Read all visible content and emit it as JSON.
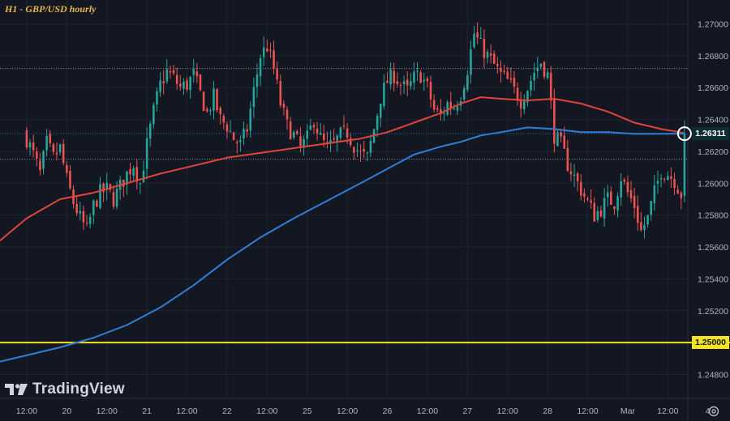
{
  "title": "H1 - GBP/USD hourly",
  "brand": "TradingView",
  "colors": {
    "background": "#131722",
    "bull": "#26a69a",
    "bear": "#ef5350",
    "ma_red": "#e0443a",
    "ma_blue": "#2f7fd8",
    "level": "#f2e422",
    "current_label_bg": "#0f2e34",
    "grid": "#1f2433",
    "axis_text": "#b2b5be"
  },
  "icons": {
    "brand": "tradingview-logo-icon",
    "settings": "gear-icon"
  },
  "chart_data": {
    "type": "candlestick",
    "title": "H1 - GBP/USD hourly",
    "ylim": [
      1.2465,
      1.2715
    ],
    "xlim": [
      -8,
      198
    ],
    "y_ticks": [
      "1.27000",
      "1.26800",
      "1.26600",
      "1.26400",
      "1.26200",
      "1.26000",
      "1.25800",
      "1.25600",
      "1.25400",
      "1.25200",
      "1.25000",
      "1.24800"
    ],
    "x_ticks": [
      {
        "x": 0,
        "label": "12:00"
      },
      {
        "x": 12,
        "label": "20"
      },
      {
        "x": 24,
        "label": "12:00"
      },
      {
        "x": 36,
        "label": "21"
      },
      {
        "x": 48,
        "label": "12:00"
      },
      {
        "x": 60,
        "label": "22"
      },
      {
        "x": 72,
        "label": "12:00"
      },
      {
        "x": 84,
        "label": "25"
      },
      {
        "x": 96,
        "label": "12:00"
      },
      {
        "x": 108,
        "label": "26"
      },
      {
        "x": 120,
        "label": "12:00"
      },
      {
        "x": 132,
        "label": "27"
      },
      {
        "x": 144,
        "label": "12:00"
      },
      {
        "x": 156,
        "label": "28"
      },
      {
        "x": 168,
        "label": "12:00"
      },
      {
        "x": 180,
        "label": "Mar"
      },
      {
        "x": 192,
        "label": "12:00"
      },
      {
        "x": 204,
        "label": "4"
      }
    ],
    "horizontal_levels": [
      {
        "price": 1.2672,
        "style": "dotted"
      },
      {
        "price": 1.2615,
        "style": "dotted"
      },
      {
        "price": 1.25,
        "style": "solid",
        "color": "#f2e422",
        "label": "1.25000"
      }
    ],
    "current_price": {
      "price": 1.26311,
      "label": "1.26311"
    },
    "anchors": [
      [
        0,
        1.2628
      ],
      [
        2,
        1.2618
      ],
      [
        4,
        1.2606
      ],
      [
        6,
        1.2625
      ],
      [
        8,
        1.2616
      ],
      [
        10,
        1.2622
      ],
      [
        12,
        1.2602
      ],
      [
        14,
        1.2588
      ],
      [
        16,
        1.2578
      ],
      [
        18,
        1.257
      ],
      [
        20,
        1.2586
      ],
      [
        22,
        1.2594
      ],
      [
        24,
        1.2596
      ],
      [
        26,
        1.259
      ],
      [
        28,
        1.2598
      ],
      [
        30,
        1.2606
      ],
      [
        32,
        1.2612
      ],
      [
        34,
        1.26
      ],
      [
        36,
        1.2624
      ],
      [
        38,
        1.2645
      ],
      [
        40,
        1.2662
      ],
      [
        42,
        1.267
      ],
      [
        44,
        1.2666
      ],
      [
        46,
        1.266
      ],
      [
        48,
        1.2662
      ],
      [
        50,
        1.2668
      ],
      [
        52,
        1.2656
      ],
      [
        54,
        1.2644
      ],
      [
        56,
        1.2654
      ],
      [
        58,
        1.264
      ],
      [
        60,
        1.2636
      ],
      [
        62,
        1.2628
      ],
      [
        64,
        1.2624
      ],
      [
        66,
        1.2634
      ],
      [
        68,
        1.2658
      ],
      [
        70,
        1.268
      ],
      [
        72,
        1.2686
      ],
      [
        74,
        1.2672
      ],
      [
        76,
        1.265
      ],
      [
        78,
        1.2636
      ],
      [
        80,
        1.263
      ],
      [
        82,
        1.2622
      ],
      [
        84,
        1.2628
      ],
      [
        86,
        1.264
      ],
      [
        88,
        1.2628
      ],
      [
        90,
        1.2622
      ],
      [
        92,
        1.2625
      ],
      [
        94,
        1.263
      ],
      [
        96,
        1.2632
      ],
      [
        98,
        1.2624
      ],
      [
        100,
        1.2618
      ],
      [
        102,
        1.2616
      ],
      [
        104,
        1.2634
      ],
      [
        106,
        1.2654
      ],
      [
        108,
        1.2664
      ],
      [
        110,
        1.2668
      ],
      [
        112,
        1.2662
      ],
      [
        114,
        1.2658
      ],
      [
        116,
        1.2666
      ],
      [
        118,
        1.2668
      ],
      [
        120,
        1.266
      ],
      [
        122,
        1.2646
      ],
      [
        124,
        1.2642
      ],
      [
        126,
        1.265
      ],
      [
        128,
        1.2648
      ],
      [
        130,
        1.2656
      ],
      [
        132,
        1.2672
      ],
      [
        134,
        1.2694
      ],
      [
        136,
        1.2686
      ],
      [
        138,
        1.268
      ],
      [
        140,
        1.2674
      ],
      [
        142,
        1.2668
      ],
      [
        144,
        1.2664
      ],
      [
        146,
        1.2658
      ],
      [
        148,
        1.2652
      ],
      [
        150,
        1.266
      ],
      [
        152,
        1.267
      ],
      [
        154,
        1.2676
      ],
      [
        156,
        1.2668
      ],
      [
        158,
        1.263
      ],
      [
        160,
        1.2624
      ],
      [
        162,
        1.2612
      ],
      [
        164,
        1.2604
      ],
      [
        166,
        1.2596
      ],
      [
        168,
        1.2588
      ],
      [
        170,
        1.258
      ],
      [
        172,
        1.2584
      ],
      [
        174,
        1.259
      ],
      [
        176,
        1.2588
      ],
      [
        178,
        1.2604
      ],
      [
        180,
        1.2594
      ],
      [
        182,
        1.2586
      ],
      [
        184,
        1.257
      ],
      [
        186,
        1.2578
      ],
      [
        188,
        1.2594
      ],
      [
        190,
        1.2608
      ],
      [
        192,
        1.2606
      ],
      [
        194,
        1.2602
      ],
      [
        196,
        1.2593
      ],
      [
        197,
        1.26311
      ]
    ],
    "moving_averages": [
      {
        "name": "MA red",
        "color": "#e0443a",
        "points": [
          [
            -8,
            1.2564
          ],
          [
            0,
            1.2578
          ],
          [
            10,
            1.259
          ],
          [
            20,
            1.2594
          ],
          [
            30,
            1.26
          ],
          [
            40,
            1.2606
          ],
          [
            50,
            1.2611
          ],
          [
            60,
            1.2616
          ],
          [
            70,
            1.2619
          ],
          [
            80,
            1.2622
          ],
          [
            90,
            1.2625
          ],
          [
            100,
            1.2628
          ],
          [
            108,
            1.2632
          ],
          [
            116,
            1.2638
          ],
          [
            124,
            1.2644
          ],
          [
            130,
            1.265
          ],
          [
            136,
            1.2654
          ],
          [
            142,
            1.2653
          ],
          [
            150,
            1.2652
          ],
          [
            158,
            1.2653
          ],
          [
            166,
            1.265
          ],
          [
            174,
            1.2645
          ],
          [
            182,
            1.2638
          ],
          [
            190,
            1.2634
          ],
          [
            197,
            1.26315
          ]
        ]
      },
      {
        "name": "MA blue",
        "color": "#2f7fd8",
        "points": [
          [
            -8,
            1.2488
          ],
          [
            0,
            1.2492
          ],
          [
            10,
            1.2497
          ],
          [
            20,
            1.2503
          ],
          [
            30,
            1.2511
          ],
          [
            40,
            1.2522
          ],
          [
            50,
            1.2536
          ],
          [
            60,
            1.2552
          ],
          [
            70,
            1.2566
          ],
          [
            80,
            1.2578
          ],
          [
            90,
            1.2589
          ],
          [
            100,
            1.26
          ],
          [
            108,
            1.2609
          ],
          [
            116,
            1.2618
          ],
          [
            124,
            1.2623
          ],
          [
            130,
            1.2626
          ],
          [
            136,
            1.263
          ],
          [
            142,
            1.2632
          ],
          [
            150,
            1.2635
          ],
          [
            158,
            1.2634
          ],
          [
            166,
            1.2632
          ],
          [
            174,
            1.2632
          ],
          [
            182,
            1.2631
          ],
          [
            190,
            1.2631
          ],
          [
            197,
            1.26311
          ]
        ]
      }
    ]
  }
}
